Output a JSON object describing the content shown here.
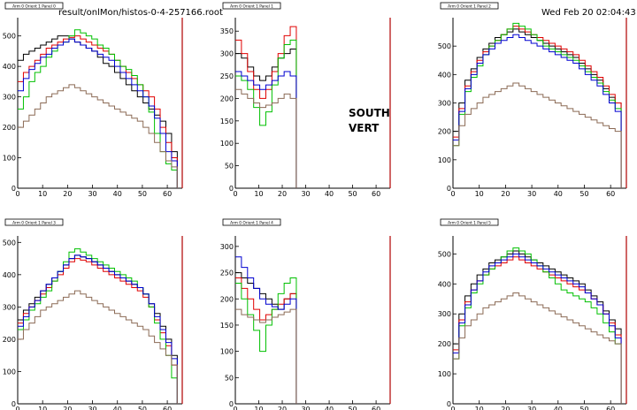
{
  "header": {
    "file": "result/onlMon/histos-0-4-257166.root",
    "datetime": "Wed Feb 20 02:04:43 2008"
  },
  "annotation": {
    "line1": "SOUTH",
    "line2": "VERT"
  },
  "colors": {
    "black": "#000000",
    "red": "#e00000",
    "green": "#00c000",
    "blue": "#0000d0",
    "brown": "#8b6a55",
    "frame_right": "#b00000"
  },
  "chart_data": [
    {
      "type": "line",
      "title": "Arm 0 Orient 1 Panel 0",
      "xlim": [
        0,
        66
      ],
      "ylim": [
        0,
        560
      ],
      "xticks": [
        0,
        10,
        20,
        30,
        40,
        50,
        60
      ],
      "yticks": [
        0,
        100,
        200,
        300,
        400,
        500
      ],
      "series": [
        {
          "color": "black",
          "values": [
            420,
            440,
            450,
            460,
            470,
            480,
            490,
            500,
            500,
            490,
            480,
            470,
            460,
            450,
            430,
            410,
            400,
            380,
            360,
            340,
            320,
            300,
            280,
            260,
            240,
            220,
            180,
            120
          ]
        },
        {
          "color": "red",
          "values": [
            350,
            380,
            400,
            420,
            440,
            460,
            470,
            480,
            490,
            495,
            500,
            490,
            480,
            470,
            460,
            450,
            440,
            420,
            400,
            380,
            360,
            340,
            320,
            300,
            260,
            200,
            150,
            100
          ]
        },
        {
          "color": "green",
          "values": [
            260,
            300,
            350,
            380,
            400,
            430,
            450,
            470,
            480,
            500,
            520,
            510,
            500,
            490,
            470,
            460,
            440,
            420,
            400,
            390,
            370,
            340,
            300,
            250,
            180,
            120,
            80,
            60
          ]
        },
        {
          "color": "blue",
          "values": [
            320,
            360,
            390,
            410,
            430,
            440,
            460,
            470,
            480,
            490,
            480,
            470,
            460,
            450,
            440,
            430,
            420,
            400,
            380,
            360,
            340,
            320,
            300,
            270,
            230,
            180,
            120,
            90
          ]
        },
        {
          "color": "brown",
          "values": [
            200,
            220,
            240,
            260,
            280,
            300,
            310,
            320,
            330,
            340,
            330,
            320,
            310,
            300,
            290,
            280,
            270,
            260,
            250,
            240,
            230,
            220,
            200,
            180,
            150,
            120,
            90,
            70
          ]
        }
      ]
    },
    {
      "type": "line",
      "title": "Arm 0 Orient 1 Panel 1",
      "xlim": [
        0,
        66
      ],
      "ylim": [
        0,
        380
      ],
      "xticks": [
        0,
        10,
        20,
        30,
        40,
        50,
        60
      ],
      "yticks": [
        0,
        50,
        100,
        150,
        200,
        250,
        300,
        350
      ],
      "series": [
        {
          "color": "black",
          "values": [
            300,
            290,
            270,
            250,
            240,
            250,
            270,
            290,
            300,
            310
          ]
        },
        {
          "color": "red",
          "values": [
            330,
            300,
            260,
            220,
            200,
            220,
            260,
            300,
            340,
            360
          ]
        },
        {
          "color": "green",
          "values": [
            250,
            240,
            220,
            180,
            140,
            170,
            230,
            290,
            320,
            330
          ]
        },
        {
          "color": "blue",
          "values": [
            260,
            250,
            240,
            230,
            220,
            230,
            240,
            250,
            260,
            250
          ]
        },
        {
          "color": "brown",
          "values": [
            220,
            210,
            200,
            190,
            180,
            185,
            190,
            200,
            210,
            200
          ]
        }
      ]
    },
    {
      "type": "line",
      "title": "Arm 0 Orient 1 Panel 2",
      "xlim": [
        0,
        66
      ],
      "ylim": [
        0,
        600
      ],
      "xticks": [
        0,
        10,
        20,
        30,
        40,
        50,
        60
      ],
      "yticks": [
        0,
        100,
        200,
        300,
        400,
        500
      ],
      "series": [
        {
          "color": "black",
          "values": [
            200,
            300,
            380,
            420,
            460,
            490,
            510,
            530,
            540,
            550,
            560,
            550,
            540,
            530,
            520,
            510,
            500,
            490,
            480,
            470,
            460,
            440,
            420,
            400,
            380,
            350,
            320,
            300
          ]
        },
        {
          "color": "red",
          "values": [
            180,
            280,
            360,
            410,
            450,
            480,
            500,
            520,
            540,
            560,
            570,
            560,
            550,
            540,
            530,
            520,
            510,
            500,
            490,
            480,
            470,
            450,
            430,
            410,
            390,
            360,
            330,
            300
          ]
        },
        {
          "color": "green",
          "values": [
            150,
            260,
            340,
            390,
            430,
            470,
            500,
            520,
            540,
            560,
            580,
            570,
            560,
            540,
            520,
            500,
            490,
            480,
            470,
            460,
            450,
            430,
            410,
            390,
            370,
            340,
            310,
            280
          ]
        },
        {
          "color": "blue",
          "values": [
            170,
            270,
            350,
            400,
            440,
            470,
            490,
            510,
            520,
            530,
            540,
            530,
            520,
            510,
            500,
            490,
            480,
            470,
            460,
            450,
            440,
            420,
            400,
            380,
            360,
            330,
            300,
            270
          ]
        },
        {
          "color": "brown",
          "values": [
            150,
            220,
            260,
            280,
            300,
            320,
            330,
            340,
            350,
            360,
            370,
            360,
            350,
            340,
            330,
            320,
            310,
            300,
            290,
            280,
            270,
            260,
            250,
            240,
            230,
            220,
            210,
            200
          ]
        }
      ]
    },
    {
      "type": "line",
      "title": "Arm 0 Orient 1 Panel 3",
      "xlim": [
        0,
        66
      ],
      "ylim": [
        0,
        520
      ],
      "xticks": [
        0,
        10,
        20,
        30,
        40,
        50,
        60
      ],
      "yticks": [
        0,
        100,
        200,
        300,
        400,
        500
      ],
      "series": [
        {
          "color": "black",
          "values": [
            260,
            290,
            310,
            330,
            350,
            370,
            390,
            410,
            430,
            450,
            460,
            455,
            450,
            440,
            430,
            420,
            410,
            400,
            390,
            380,
            370,
            360,
            340,
            310,
            280,
            240,
            200,
            150
          ]
        },
        {
          "color": "red",
          "values": [
            250,
            280,
            300,
            320,
            340,
            360,
            380,
            400,
            420,
            440,
            450,
            445,
            440,
            430,
            420,
            410,
            400,
            390,
            380,
            370,
            360,
            350,
            330,
            300,
            260,
            220,
            180,
            120
          ]
        },
        {
          "color": "green",
          "values": [
            230,
            260,
            290,
            310,
            330,
            350,
            380,
            410,
            440,
            470,
            480,
            470,
            460,
            450,
            440,
            430,
            420,
            410,
            400,
            390,
            380,
            360,
            340,
            300,
            250,
            200,
            150,
            80
          ]
        },
        {
          "color": "blue",
          "values": [
            240,
            270,
            300,
            320,
            350,
            370,
            390,
            410,
            430,
            450,
            460,
            455,
            450,
            440,
            430,
            420,
            410,
            400,
            390,
            380,
            370,
            360,
            340,
            310,
            270,
            230,
            190,
            140
          ]
        },
        {
          "color": "brown",
          "values": [
            200,
            230,
            250,
            270,
            290,
            300,
            310,
            320,
            330,
            340,
            350,
            340,
            330,
            320,
            310,
            300,
            290,
            280,
            270,
            260,
            250,
            240,
            230,
            210,
            190,
            170,
            150,
            120
          ]
        }
      ]
    },
    {
      "type": "line",
      "title": "Arm 0 Orient 1 Panel 4",
      "xlim": [
        0,
        66
      ],
      "ylim": [
        0,
        320
      ],
      "xticks": [
        0,
        10,
        20,
        30,
        40,
        50,
        60
      ],
      "yticks": [
        0,
        50,
        100,
        150,
        200,
        250,
        300
      ],
      "series": [
        {
          "color": "black",
          "values": [
            250,
            240,
            230,
            220,
            210,
            200,
            190,
            180,
            200,
            210
          ]
        },
        {
          "color": "red",
          "values": [
            240,
            220,
            200,
            180,
            160,
            170,
            180,
            190,
            200,
            210
          ]
        },
        {
          "color": "green",
          "values": [
            230,
            200,
            170,
            140,
            100,
            150,
            180,
            210,
            230,
            240
          ]
        },
        {
          "color": "blue",
          "values": [
            280,
            260,
            240,
            220,
            200,
            190,
            185,
            180,
            190,
            200
          ]
        },
        {
          "color": "brown",
          "values": [
            180,
            170,
            165,
            160,
            155,
            160,
            165,
            170,
            175,
            180
          ]
        }
      ]
    },
    {
      "type": "line",
      "title": "Arm 0 Orient 1 Panel 5",
      "xlim": [
        0,
        66
      ],
      "ylim": [
        0,
        560
      ],
      "xticks": [
        0,
        10,
        20,
        30,
        40,
        50,
        60
      ],
      "yticks": [
        0,
        100,
        200,
        300,
        400,
        500
      ],
      "series": [
        {
          "color": "black",
          "values": [
            200,
            300,
            360,
            400,
            430,
            450,
            470,
            480,
            490,
            500,
            510,
            500,
            490,
            480,
            470,
            460,
            450,
            440,
            430,
            420,
            410,
            400,
            380,
            360,
            340,
            310,
            280,
            250
          ]
        },
        {
          "color": "red",
          "values": [
            180,
            280,
            340,
            380,
            410,
            430,
            450,
            460,
            470,
            480,
            490,
            480,
            470,
            460,
            450,
            440,
            430,
            420,
            410,
            400,
            390,
            380,
            370,
            350,
            330,
            300,
            270,
            230
          ]
        },
        {
          "color": "green",
          "values": [
            150,
            260,
            320,
            370,
            400,
            430,
            450,
            470,
            490,
            510,
            520,
            510,
            500,
            480,
            460,
            440,
            420,
            400,
            380,
            370,
            360,
            350,
            340,
            320,
            300,
            270,
            240,
            200
          ]
        },
        {
          "color": "blue",
          "values": [
            170,
            270,
            330,
            380,
            410,
            440,
            460,
            470,
            480,
            490,
            500,
            490,
            480,
            470,
            460,
            450,
            440,
            430,
            420,
            410,
            400,
            390,
            370,
            350,
            330,
            300,
            260,
            220
          ]
        },
        {
          "color": "brown",
          "values": [
            150,
            220,
            260,
            280,
            300,
            320,
            330,
            340,
            350,
            360,
            370,
            360,
            350,
            340,
            330,
            320,
            310,
            300,
            290,
            280,
            270,
            260,
            250,
            240,
            230,
            220,
            210,
            200
          ]
        }
      ]
    }
  ]
}
